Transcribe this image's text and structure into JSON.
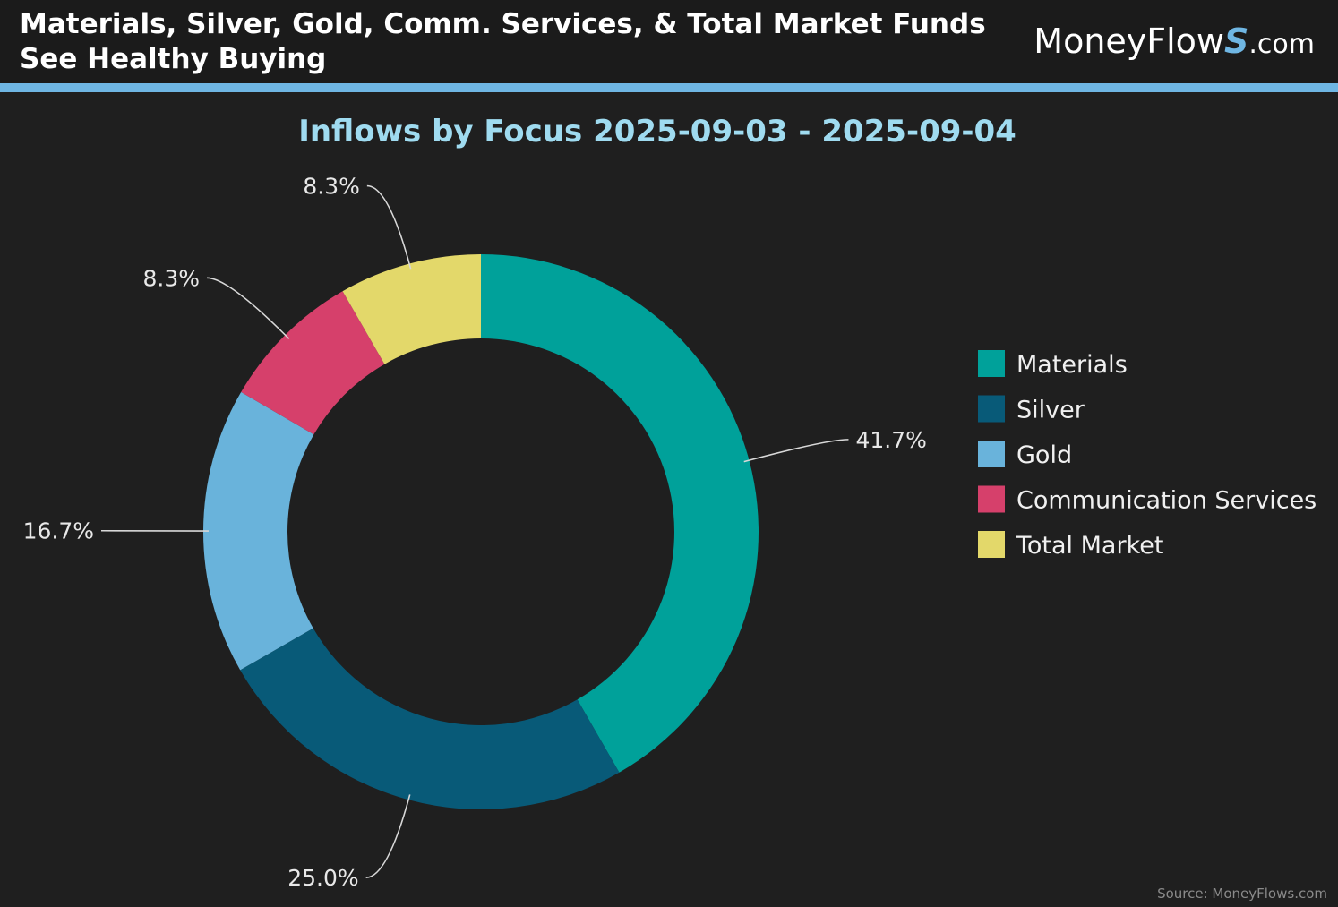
{
  "header": {
    "headline_line1": "Materials, Silver, Gold, Comm. Services, & Total Market Funds",
    "headline_line2": "See Healthy Buying",
    "brand_main": "MoneyFlow",
    "brand_s": "S",
    "brand_domain": ".com"
  },
  "source": "Source: MoneyFlows.com",
  "colors": {
    "accent_bar": "#6fb6e3",
    "title": "#9fdbf0"
  },
  "chart_data": {
    "type": "pie",
    "style": "donut",
    "title": "Inflows by Focus 2025-09-03 - 2025-09-04",
    "legend_position": "right",
    "categories": [
      "Materials",
      "Silver",
      "Gold",
      "Communication Services",
      "Total Market"
    ],
    "values": [
      41.7,
      25.0,
      16.7,
      8.3,
      8.3
    ],
    "labels": [
      "41.7%",
      "25.0%",
      "16.7%",
      "8.3%",
      "8.3%"
    ],
    "colors": [
      "#00a19a",
      "#085a78",
      "#69b3db",
      "#d6406b",
      "#e3d86a"
    ]
  }
}
